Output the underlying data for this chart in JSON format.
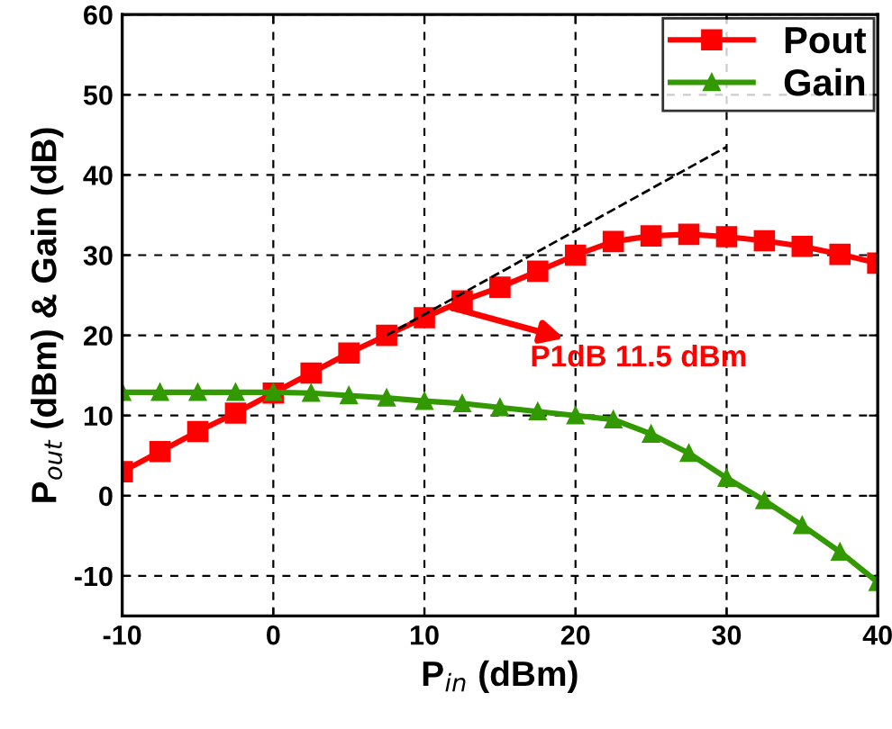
{
  "chart_data": {
    "type": "line",
    "xlabel": "P$_{in}$ (dBm)",
    "ylabel": "P$_{out}$ (dBm) & Gain (dB)",
    "x": [
      -10,
      -7.5,
      -5,
      -2.5,
      0,
      2.5,
      5,
      7.5,
      10,
      12.5,
      15,
      17.5,
      20,
      22.5,
      25,
      27.5,
      30,
      32.5,
      35,
      37.5,
      40
    ],
    "series": [
      {
        "name": "Pout",
        "color": "#ff0000",
        "marker": "square",
        "values": [
          3,
          5.5,
          8,
          10.3,
          12.8,
          15.3,
          17.8,
          20,
          22.2,
          24.3,
          26,
          28,
          30,
          31.7,
          32.4,
          32.6,
          32.3,
          31.8,
          31.1,
          30.1,
          29
        ]
      },
      {
        "name": "Gain",
        "color": "#339900",
        "marker": "triangle",
        "values": [
          12.9,
          12.9,
          12.9,
          12.9,
          12.9,
          12.8,
          12.5,
          12.2,
          11.8,
          11.5,
          11,
          10.5,
          10,
          9.5,
          7.7,
          5.3,
          2.2,
          -0.6,
          -3.7,
          -7,
          -10.8
        ]
      },
      {
        "type": "line",
        "color": "#000000",
        "line_style": "dashed",
        "marker": "none",
        "x": [
          7.5,
          30
        ],
        "values": [
          20,
          43.5
        ]
      }
    ],
    "xlim": [
      -10,
      40
    ],
    "xticks": [
      -10,
      0,
      10,
      20,
      30,
      40
    ],
    "ylim": [
      -15,
      60
    ],
    "yticks": [
      -10,
      0,
      10,
      20,
      30,
      40,
      50,
      60
    ],
    "grid": true,
    "legend": "top right",
    "annotations": [
      {
        "text": "P1dB 11.5 dBm",
        "x": 11.5,
        "y": 23.6
      }
    ]
  }
}
